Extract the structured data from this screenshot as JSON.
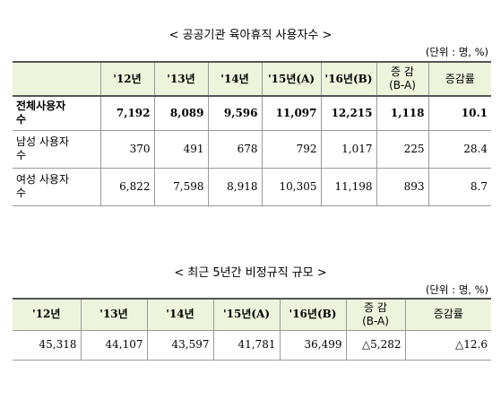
{
  "table1": {
    "title": "< 공공기관 육아휴직 사용자수 >",
    "unit": "(단위 : 명, %)",
    "header": [
      "",
      "'12년",
      "'13년",
      "'14년",
      "'15년(A)",
      "'16년(B)",
      "증 감\n(B-A)",
      "증감률"
    ],
    "rows": [
      [
        "전체사용자\n수",
        "7,192",
        "8,089",
        "9,596",
        "11,097",
        "12,215",
        "1,118",
        "10.1"
      ],
      [
        "남성 사용자\n수",
        "370",
        "491",
        "678",
        "792",
        "1,017",
        "225",
        "28.4"
      ],
      [
        "여성 사용자\n수",
        "6,822",
        "7,598",
        "8,918",
        "10,305",
        "11,198",
        "893",
        "8.7"
      ]
    ]
  },
  "table2": {
    "title": "< 최근 5년간 비정규직 규모 >",
    "unit": "(단위 : 명, %)",
    "header": [
      "'12년",
      "'13년",
      "'14년",
      "'15년(A)",
      "'16년(B)",
      "증 감\n(B-A)",
      "증감률"
    ],
    "rows": [
      [
        "45,318",
        "44,107",
        "43,597",
        "41,781",
        "36,499",
        "△5,282",
        "△12.6"
      ]
    ]
  }
}
